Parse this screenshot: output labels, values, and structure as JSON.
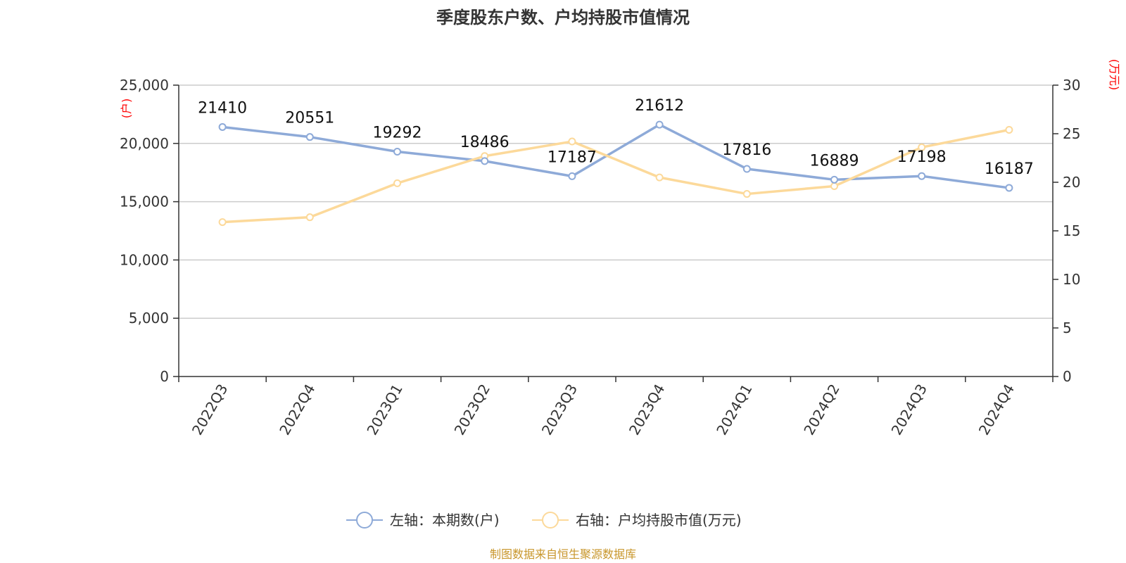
{
  "title": "季度股东户数、户均持股市值情况",
  "source": "制图数据来自恒生聚源数据库",
  "chart_data": {
    "type": "line",
    "title": "季度股东户数、户均持股市值情况",
    "categories": [
      "2022Q3",
      "2022Q4",
      "2023Q1",
      "2023Q2",
      "2023Q3",
      "2023Q4",
      "2024Q1",
      "2024Q2",
      "2024Q3",
      "2024Q4"
    ],
    "left_axis": {
      "unit": "(户)",
      "ylim": [
        0,
        25000
      ],
      "ticks": [
        "0",
        "5,000",
        "10,000",
        "15,000",
        "20,000",
        "25,000"
      ]
    },
    "right_axis": {
      "unit": "(万元)",
      "ylim": [
        0,
        30
      ],
      "ticks": [
        "0",
        "5",
        "10",
        "15",
        "20",
        "25",
        "30"
      ]
    },
    "grid": true,
    "legend_position": "bottom-center",
    "series": [
      {
        "name": "左轴：本期数(户)",
        "axis": "left",
        "color": "#8eaad8",
        "values": [
          21410,
          20551,
          19292,
          18486,
          17187,
          21612,
          17816,
          16889,
          17198,
          16187
        ],
        "labels": [
          "21410",
          "20551",
          "19292",
          "18486",
          "17187",
          "21612",
          "17816",
          "16889",
          "17198",
          "16187"
        ]
      },
      {
        "name": "右轴：户均持股市值(万元)",
        "axis": "right",
        "color": "#fcd99a",
        "values": [
          15.9,
          16.4,
          19.9,
          22.7,
          24.2,
          20.5,
          18.8,
          19.6,
          23.6,
          25.4
        ]
      }
    ]
  }
}
